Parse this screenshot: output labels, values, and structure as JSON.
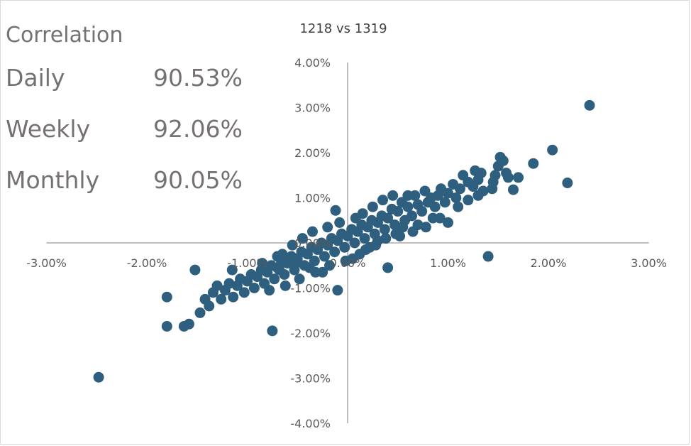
{
  "correlation_panel": {
    "title": "Correlation",
    "rows": [
      {
        "label": "Daily",
        "value": "90.53%"
      },
      {
        "label": "Weekly",
        "value": "92.06%"
      },
      {
        "label": "Monthly",
        "value": "90.05%"
      }
    ]
  },
  "chart_data": {
    "type": "scatter",
    "title": "1218 vs 1319",
    "xlabel": "",
    "ylabel": "",
    "xlim": [
      -3.0,
      3.0
    ],
    "ylim": [
      -4.0,
      4.0
    ],
    "x_ticks": [
      "-3.00%",
      "-2.00%",
      "-1.00%",
      "0.00%",
      "1.00%",
      "2.00%",
      "3.00%"
    ],
    "y_ticks": [
      "-4.00%",
      "-3.00%",
      "-2.00%",
      "-1.00%",
      "0.00%",
      "1.00%",
      "2.00%",
      "3.00%",
      "4.00%"
    ],
    "unit": "%",
    "grid": false,
    "legend": "none",
    "marker_color": "#2e5f7f",
    "axis_color": "#bfbfbf",
    "series": [
      {
        "points": [
          [
            2.41,
            3.05
          ],
          [
            2.19,
            1.33
          ],
          [
            2.04,
            2.06
          ],
          [
            1.85,
            1.76
          ],
          [
            1.7,
            1.45
          ],
          [
            1.65,
            1.18
          ],
          [
            1.58,
            1.55
          ],
          [
            1.55,
            1.82
          ],
          [
            1.52,
            1.9
          ],
          [
            1.5,
            1.7
          ],
          [
            1.47,
            1.5
          ],
          [
            1.44,
            1.2
          ],
          [
            1.4,
            -0.3
          ],
          [
            1.35,
            1.15
          ],
          [
            1.33,
            1.55
          ],
          [
            1.3,
            1.4
          ],
          [
            1.27,
            1.6
          ],
          [
            1.25,
            1.25
          ],
          [
            1.2,
            1.35
          ],
          [
            1.15,
            1.5
          ],
          [
            1.12,
            1.2
          ],
          [
            1.08,
            1.0
          ],
          [
            1.05,
            1.3
          ],
          [
            1.0,
            1.1
          ],
          [
            0.97,
            0.9
          ],
          [
            0.93,
            1.2
          ],
          [
            0.9,
            1.05
          ],
          [
            0.87,
            0.8
          ],
          [
            0.83,
            1.0
          ],
          [
            0.8,
            0.9
          ],
          [
            0.77,
            1.15
          ],
          [
            0.74,
            0.7
          ],
          [
            0.7,
            0.85
          ],
          [
            0.67,
            1.05
          ],
          [
            0.64,
            0.6
          ],
          [
            0.6,
            0.8
          ],
          [
            0.57,
            0.5
          ],
          [
            0.54,
            0.9
          ],
          [
            0.5,
            0.7
          ],
          [
            0.47,
            0.4
          ],
          [
            0.44,
            0.75
          ],
          [
            0.4,
            0.55
          ],
          [
            0.37,
            0.3
          ],
          [
            0.34,
            0.6
          ],
          [
            0.3,
            0.45
          ],
          [
            0.27,
            0.2
          ],
          [
            0.24,
            0.5
          ],
          [
            0.2,
            0.35
          ],
          [
            0.17,
            0.1
          ],
          [
            0.14,
            0.4
          ],
          [
            0.1,
            0.25
          ],
          [
            0.07,
            0.0
          ],
          [
            0.04,
            0.3
          ],
          [
            0.0,
            0.15
          ],
          [
            -0.03,
            -0.1
          ],
          [
            -0.06,
            0.2
          ],
          [
            -0.1,
            0.05
          ],
          [
            -0.13,
            -0.2
          ],
          [
            -0.16,
            0.1
          ],
          [
            -0.2,
            -0.05
          ],
          [
            -0.23,
            -0.3
          ],
          [
            -0.26,
            0.0
          ],
          [
            -0.3,
            -0.15
          ],
          [
            -0.33,
            -0.4
          ],
          [
            -0.36,
            -0.1
          ],
          [
            -0.4,
            -0.25
          ],
          [
            -0.43,
            -0.5
          ],
          [
            -0.46,
            -0.2
          ],
          [
            -0.5,
            -0.35
          ],
          [
            -0.53,
            -0.6
          ],
          [
            -0.56,
            -0.3
          ],
          [
            -0.6,
            -0.45
          ],
          [
            -0.63,
            -0.7
          ],
          [
            -0.66,
            -0.4
          ],
          [
            -0.7,
            -0.55
          ],
          [
            -0.73,
            -0.8
          ],
          [
            -0.76,
            -0.5
          ],
          [
            -0.8,
            -0.65
          ],
          [
            -0.83,
            -0.9
          ],
          [
            -0.86,
            -0.6
          ],
          [
            -0.9,
            -0.75
          ],
          [
            -0.93,
            -1.0
          ],
          [
            -0.96,
            -0.7
          ],
          [
            -1.0,
            -0.85
          ],
          [
            -1.03,
            -1.1
          ],
          [
            -1.07,
            -0.8
          ],
          [
            -1.1,
            -0.95
          ],
          [
            -1.14,
            -1.2
          ],
          [
            -1.18,
            -0.9
          ],
          [
            -1.22,
            -1.05
          ],
          [
            -1.26,
            -1.25
          ],
          [
            -1.3,
            -0.95
          ],
          [
            -1.34,
            -1.1
          ],
          [
            -1.38,
            -1.4
          ],
          [
            -1.42,
            -1.25
          ],
          [
            -1.47,
            -1.55
          ],
          [
            -1.52,
            -0.6
          ],
          [
            -1.58,
            -1.8
          ],
          [
            -1.63,
            -1.85
          ],
          [
            -1.8,
            -1.85
          ],
          [
            -1.8,
            -1.2
          ],
          [
            -2.48,
            -2.98
          ],
          [
            -0.75,
            -1.95
          ],
          [
            -0.1,
            -1.05
          ],
          [
            -0.65,
            -0.25
          ],
          [
            0.4,
            -0.55
          ],
          [
            0.6,
            1.05
          ],
          [
            1.0,
            0.45
          ],
          [
            -0.12,
            0.72
          ],
          [
            0.05,
            -0.35
          ],
          [
            -0.25,
            -0.65
          ],
          [
            0.3,
            0.05
          ],
          [
            0.52,
            0.15
          ],
          [
            0.7,
            0.4
          ],
          [
            0.85,
            0.55
          ],
          [
            1.1,
            0.8
          ],
          [
            -0.45,
            0.1
          ],
          [
            -0.55,
            -0.05
          ],
          [
            -0.7,
            -0.3
          ],
          [
            -0.85,
            -0.45
          ],
          [
            -1.15,
            -0.6
          ],
          [
            0.15,
            0.65
          ],
          [
            0.25,
            0.8
          ],
          [
            0.35,
            0.95
          ],
          [
            0.45,
            1.05
          ],
          [
            0.65,
            0.25
          ],
          [
            0.78,
            0.35
          ],
          [
            0.92,
            0.55
          ],
          [
            -0.35,
            0.25
          ],
          [
            -0.2,
            0.35
          ],
          [
            -0.08,
            0.45
          ],
          [
            0.08,
            0.55
          ],
          [
            0.22,
            -0.1
          ],
          [
            0.12,
            -0.25
          ],
          [
            -0.02,
            -0.4
          ],
          [
            -0.18,
            -0.5
          ],
          [
            -0.32,
            -0.65
          ],
          [
            -0.48,
            -0.8
          ],
          [
            -0.62,
            -0.95
          ],
          [
            -0.78,
            -1.05
          ],
          [
            1.2,
            0.95
          ],
          [
            1.3,
            1.05
          ],
          [
            1.45,
            1.35
          ],
          [
            1.6,
            1.45
          ],
          [
            0.55,
            0.35
          ],
          [
            0.48,
            0.2
          ],
          [
            0.38,
            0.1
          ],
          [
            0.28,
            -0.05
          ],
          [
            0.18,
            -0.15
          ],
          [
            -0.38,
            -0.55
          ],
          [
            -0.52,
            -0.45
          ],
          [
            -0.68,
            -0.6
          ]
        ]
      }
    ]
  }
}
